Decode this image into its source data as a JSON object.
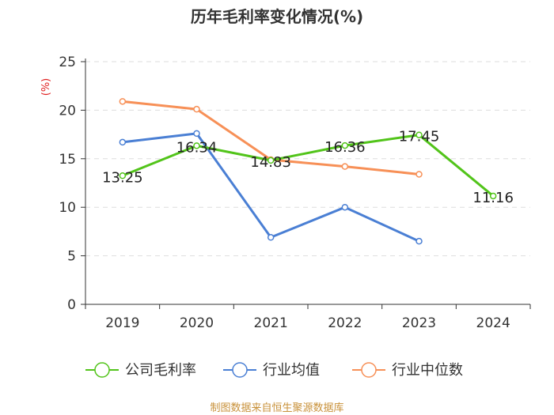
{
  "chart_data": {
    "type": "line",
    "title": "历年毛利率变化情况(%)",
    "ylabel": "(%)",
    "xlabel": "",
    "categories": [
      "2019",
      "2020",
      "2021",
      "2022",
      "2023",
      "2024"
    ],
    "ylim": [
      0,
      25
    ],
    "yticks": [
      0,
      5,
      10,
      15,
      20,
      25
    ],
    "grid": true,
    "legend_position": "bottom",
    "series": [
      {
        "name": "公司毛利率",
        "color": "#52c41a",
        "values": [
          13.25,
          16.34,
          14.83,
          16.36,
          17.45,
          11.16
        ],
        "labels": [
          "13.25",
          "16.34",
          "14.83",
          "16.36",
          "17.45",
          "11.16"
        ]
      },
      {
        "name": "行业均值",
        "color": "#4a7fd4",
        "values": [
          16.7,
          17.6,
          6.9,
          10.0,
          6.5,
          null
        ]
      },
      {
        "name": "行业中位数",
        "color": "#f79057",
        "values": [
          20.9,
          20.1,
          14.9,
          14.2,
          13.4,
          null
        ]
      }
    ]
  },
  "source": "制图数据来自恒生聚源数据库"
}
